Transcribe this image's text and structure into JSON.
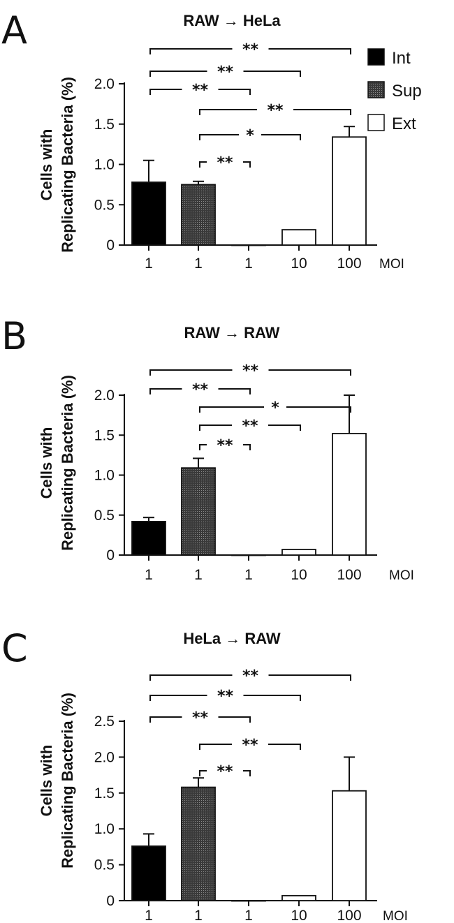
{
  "legend": [
    {
      "label": "Int",
      "key": "int"
    },
    {
      "label": "Sup",
      "key": "sup"
    },
    {
      "label": "Ext",
      "key": "ext"
    }
  ],
  "colors": {
    "int": "#000000",
    "sup": "#2b2b2b",
    "ext": "#ffffff",
    "stroke": "#111111"
  },
  "chart_data": [
    {
      "type": "bar",
      "panel": "A",
      "title": "RAW → HeLa",
      "ylabel": [
        "Cells with",
        "Replicating Bacteria (%)"
      ],
      "xlabel": "MOI",
      "categories": [
        "1",
        "1",
        "1",
        "10",
        "100"
      ],
      "series_keys": [
        "int",
        "sup",
        "ext",
        "ext",
        "ext"
      ],
      "values": [
        0.78,
        0.75,
        0.0,
        0.19,
        1.34
      ],
      "errors": [
        0.27,
        0.04,
        0.0,
        0.0,
        0.13
      ],
      "ylim": [
        0,
        2.0
      ],
      "yticks": [
        "0",
        "0.5",
        "1.0",
        "1.5",
        "2.0"
      ],
      "significance": [
        {
          "from": 0,
          "to": 4,
          "label": "**"
        },
        {
          "from": 0,
          "to": 3,
          "label": "**"
        },
        {
          "from": 0,
          "to": 2,
          "label": "**"
        },
        {
          "from": 1,
          "to": 4,
          "label": "**"
        },
        {
          "from": 1,
          "to": 3,
          "label": "*"
        },
        {
          "from": 1,
          "to": 2,
          "label": "**"
        }
      ]
    },
    {
      "type": "bar",
      "panel": "B",
      "title": "RAW → RAW",
      "ylabel": [
        "Cells with",
        "Replicating Bacteria (%)"
      ],
      "xlabel": "MOI",
      "categories": [
        "1",
        "1",
        "1",
        "10",
        "100"
      ],
      "series_keys": [
        "int",
        "sup",
        "ext",
        "ext",
        "ext"
      ],
      "values": [
        0.42,
        1.09,
        0.0,
        0.07,
        1.52
      ],
      "errors": [
        0.05,
        0.12,
        0.0,
        0.0,
        0.48
      ],
      "ylim": [
        0,
        2.0
      ],
      "yticks": [
        "0",
        "0.5",
        "1.0",
        "1.5",
        "2.0"
      ],
      "significance": [
        {
          "from": 0,
          "to": 4,
          "label": "**"
        },
        {
          "from": 0,
          "to": 2,
          "label": "**"
        },
        {
          "from": 1,
          "to": 4,
          "label": "*"
        },
        {
          "from": 1,
          "to": 3,
          "label": "**"
        },
        {
          "from": 1,
          "to": 2,
          "label": "**"
        }
      ]
    },
    {
      "type": "bar",
      "panel": "C",
      "title": "HeLa → RAW",
      "ylabel": [
        "Cells with",
        "Replicating Bacteria (%)"
      ],
      "xlabel": "MOI",
      "categories": [
        "1",
        "1",
        "1",
        "10",
        "100"
      ],
      "series_keys": [
        "int",
        "sup",
        "ext",
        "ext",
        "ext"
      ],
      "values": [
        0.76,
        1.58,
        0.0,
        0.07,
        1.53
      ],
      "errors": [
        0.17,
        0.13,
        0.0,
        0.0,
        0.47
      ],
      "ylim": [
        0,
        2.5
      ],
      "yticks": [
        "0",
        "0.5",
        "1.0",
        "1.5",
        "2.0",
        "2.5"
      ],
      "significance": [
        {
          "from": 0,
          "to": 4,
          "label": "**"
        },
        {
          "from": 0,
          "to": 3,
          "label": "**"
        },
        {
          "from": 0,
          "to": 2,
          "label": "**"
        },
        {
          "from": 1,
          "to": 3,
          "label": "**"
        },
        {
          "from": 1,
          "to": 2,
          "label": "**"
        }
      ]
    }
  ]
}
